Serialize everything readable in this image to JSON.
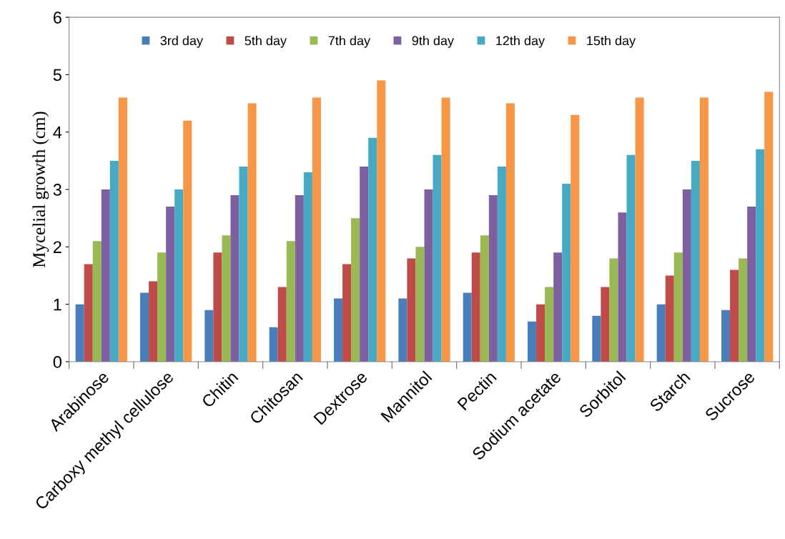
{
  "chart_data": {
    "type": "bar",
    "ylabel": "Mycelial growth (cm)",
    "categories": [
      "Arabinose",
      "Carboxy methyl cellulose",
      "Chitin",
      "Chitosan",
      "Dextrose",
      "Mannitol",
      "Pectin",
      "Sodium acetate",
      "Sorbitol",
      "Starch",
      "Sucrose"
    ],
    "series": [
      {
        "name": "3rd day",
        "color": "#4a7ebb",
        "values": [
          1.0,
          1.2,
          0.9,
          0.6,
          1.1,
          1.1,
          1.2,
          0.7,
          0.8,
          1.0,
          0.9
        ]
      },
      {
        "name": "5th day",
        "color": "#be4b48",
        "values": [
          1.7,
          1.4,
          1.9,
          1.3,
          1.7,
          1.8,
          1.9,
          1.0,
          1.3,
          1.5,
          1.6
        ]
      },
      {
        "name": "7th day",
        "color": "#98b954",
        "values": [
          2.1,
          1.9,
          2.2,
          2.1,
          2.5,
          2.0,
          2.2,
          1.3,
          1.8,
          1.9,
          1.8
        ]
      },
      {
        "name": "9th day",
        "color": "#7d60a0",
        "values": [
          3.0,
          2.7,
          2.9,
          2.9,
          3.4,
          3.0,
          2.9,
          1.9,
          2.6,
          3.0,
          2.7
        ]
      },
      {
        "name": "12th day",
        "color": "#46aac5",
        "values": [
          3.5,
          3.0,
          3.4,
          3.3,
          3.9,
          3.6,
          3.4,
          3.1,
          3.6,
          3.5,
          3.7
        ]
      },
      {
        "name": "15th day",
        "color": "#f79646",
        "values": [
          4.6,
          4.2,
          4.5,
          4.6,
          4.9,
          4.6,
          4.5,
          4.3,
          4.6,
          4.6,
          4.7
        ]
      }
    ],
    "ylim": [
      0,
      6
    ],
    "yticks": [
      0,
      1,
      2,
      3,
      4,
      5,
      6
    ],
    "grid": false,
    "legend": "top"
  }
}
